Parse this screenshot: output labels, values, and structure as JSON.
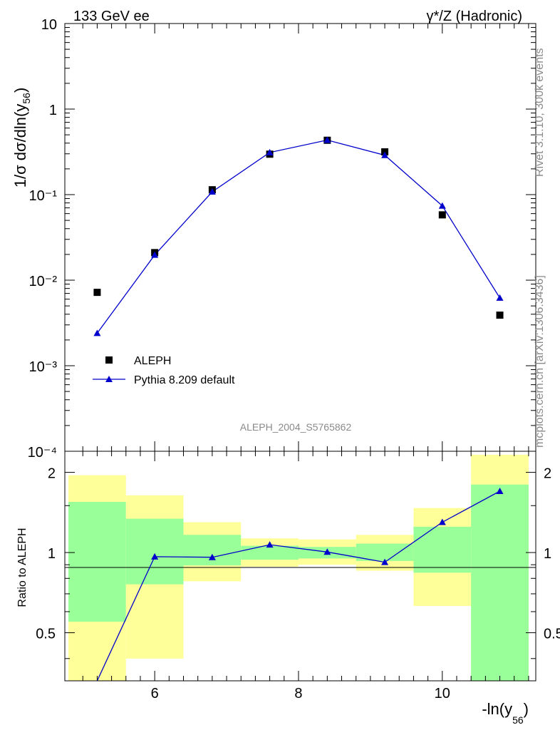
{
  "header": {
    "left": "133 GeV ee",
    "right": "γ*/Z (Hadronic)"
  },
  "side_labels": {
    "top": "Rivet 3.1.10,  300k events",
    "bottom": "mcplots.cern.ch [arXiv:1306.3436]"
  },
  "watermark": "ALEPH_2004_S5765862",
  "chart_data": [
    {
      "type": "scatter",
      "title": "",
      "ylabel": "1/σ  dσ/dln(y56)",
      "yscale": "log",
      "ylim": [
        0.0001,
        10
      ],
      "xlim": [
        4.75,
        11.3
      ],
      "ytick_labels": [
        "10⁻⁴",
        "10⁻³",
        "10⁻²",
        "10⁻¹",
        "1",
        "10"
      ],
      "legend_position": "bottom-left",
      "series": [
        {
          "name": "ALEPH",
          "marker": "square",
          "color": "#000000",
          "x": [
            5.2,
            6.0,
            6.8,
            7.6,
            8.4,
            9.2,
            10.0,
            10.8
          ],
          "y": [
            0.0072,
            0.021,
            0.114,
            0.297,
            0.432,
            0.316,
            0.058,
            0.0039
          ]
        },
        {
          "name": "Pythia 8.209 default",
          "marker": "triangle",
          "color": "#0000cc",
          "x": [
            5.2,
            6.0,
            6.8,
            7.6,
            8.4,
            9.2,
            10.0,
            10.8
          ],
          "y": [
            0.0024,
            0.0197,
            0.108,
            0.311,
            0.434,
            0.289,
            0.074,
            0.0062
          ]
        }
      ]
    },
    {
      "type": "line",
      "ylabel": "Ratio to ALEPH",
      "xlabel": "-ln(y56)",
      "yscale": "log",
      "ylim": [
        0.33,
        2.4
      ],
      "xlim": [
        4.75,
        11.3
      ],
      "xtick_labels": [
        "6",
        "8",
        "10"
      ],
      "ytick_labels": [
        "0.5",
        "1",
        "2"
      ],
      "band_colors": {
        "inner": "#99ff99",
        "outer": "#ffff99"
      },
      "bins": [
        {
          "xlo": 4.8,
          "xhi": 5.6,
          "inner": [
            0.55,
            1.55
          ],
          "outer": [
            0.3,
            1.95
          ]
        },
        {
          "xlo": 5.6,
          "xhi": 6.4,
          "inner": [
            0.76,
            1.34
          ],
          "outer": [
            0.4,
            1.64
          ]
        },
        {
          "xlo": 6.4,
          "xhi": 7.2,
          "inner": [
            0.895,
            1.165
          ],
          "outer": [
            0.78,
            1.3
          ]
        },
        {
          "xlo": 7.2,
          "xhi": 8.0,
          "inner": [
            0.94,
            1.06
          ],
          "outer": [
            0.885,
            1.13
          ]
        },
        {
          "xlo": 8.0,
          "xhi": 8.8,
          "inner": [
            0.95,
            1.05
          ],
          "outer": [
            0.9,
            1.12
          ]
        },
        {
          "xlo": 8.8,
          "xhi": 9.6,
          "inner": [
            0.93,
            1.08
          ],
          "outer": [
            0.855,
            1.165
          ]
        },
        {
          "xlo": 9.6,
          "xhi": 10.4,
          "inner": [
            0.84,
            1.25
          ],
          "outer": [
            0.63,
            1.47
          ]
        },
        {
          "xlo": 10.4,
          "xhi": 11.2,
          "inner": [
            0.3,
            1.8
          ],
          "outer": [
            0.3,
            2.33
          ]
        }
      ],
      "series": [
        {
          "name": "Pythia 8.209 default",
          "color": "#0000cc",
          "x": [
            5.2,
            6.0,
            6.8,
            7.6,
            8.4,
            9.2,
            10.0,
            10.8
          ],
          "y": [
            0.33,
            0.965,
            0.96,
            1.07,
            1.005,
            0.92,
            1.3,
            1.7
          ]
        }
      ]
    }
  ]
}
